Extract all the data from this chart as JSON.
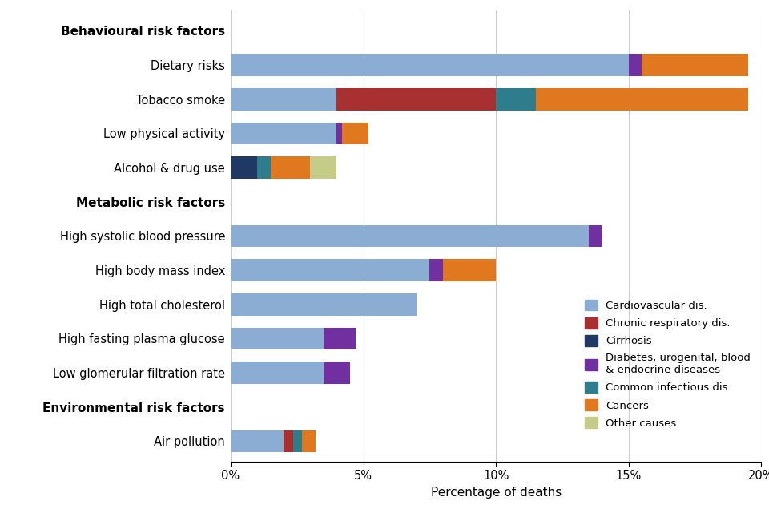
{
  "rows": [
    {
      "label": "Behavioural risk factors",
      "is_header": true,
      "data": [
        0,
        0,
        0,
        0,
        0,
        0,
        0
      ]
    },
    {
      "label": "Dietary risks",
      "is_header": false,
      "data": [
        15.0,
        0.0,
        0.0,
        0.5,
        0.0,
        4.0,
        0.0
      ]
    },
    {
      "label": "Tobacco smoke",
      "is_header": false,
      "data": [
        4.0,
        6.0,
        0.0,
        0.0,
        1.5,
        8.0,
        0.0
      ]
    },
    {
      "label": "Low physical activity",
      "is_header": false,
      "data": [
        4.0,
        0.0,
        0.0,
        0.2,
        0.0,
        1.0,
        0.0
      ]
    },
    {
      "label": "Alcohol & drug use",
      "is_header": false,
      "data": [
        0.0,
        0.0,
        1.0,
        0.0,
        0.5,
        1.5,
        1.0
      ]
    },
    {
      "label": "Metabolic risk factors",
      "is_header": true,
      "data": [
        0,
        0,
        0,
        0,
        0,
        0,
        0
      ]
    },
    {
      "label": "High systolic blood pressure",
      "is_header": false,
      "data": [
        13.5,
        0.0,
        0.0,
        0.5,
        0.0,
        0.0,
        0.0
      ]
    },
    {
      "label": "High body mass index",
      "is_header": false,
      "data": [
        7.5,
        0.0,
        0.0,
        0.5,
        0.0,
        2.0,
        0.0
      ]
    },
    {
      "label": "High total cholesterol",
      "is_header": false,
      "data": [
        7.0,
        0.0,
        0.0,
        0.0,
        0.0,
        0.0,
        0.0
      ]
    },
    {
      "label": "High fasting plasma glucose",
      "is_header": false,
      "data": [
        3.5,
        0.0,
        0.0,
        1.2,
        0.0,
        0.0,
        0.0
      ]
    },
    {
      "label": "Low glomerular filtration rate",
      "is_header": false,
      "data": [
        3.5,
        0.0,
        0.0,
        1.0,
        0.0,
        0.0,
        0.0
      ]
    },
    {
      "label": "Environmental risk factors",
      "is_header": true,
      "data": [
        0,
        0,
        0,
        0,
        0,
        0,
        0
      ]
    },
    {
      "label": "Air pollution",
      "is_header": false,
      "data": [
        2.0,
        0.35,
        0.0,
        0.0,
        0.35,
        0.5,
        0.0
      ]
    }
  ],
  "series_names": [
    "Cardiovascular dis.",
    "Chronic respiratory dis.",
    "Cirrhosis",
    "Diabetes, urogenital, blood\n& endocrine diseases",
    "Common infectious dis.",
    "Cancers",
    "Other causes"
  ],
  "colors": [
    "#8BADD3",
    "#A83030",
    "#1F3864",
    "#7030A0",
    "#2E7D8C",
    "#E07820",
    "#C5CC88"
  ],
  "xlim": [
    0,
    20
  ],
  "xticks": [
    0,
    5,
    10,
    15,
    20
  ],
  "xtick_labels": [
    "0%",
    "5%",
    "10%",
    "15%",
    "20%"
  ],
  "xlabel": "Percentage of deaths",
  "background_color": "#FFFFFF",
  "bar_height": 0.65
}
